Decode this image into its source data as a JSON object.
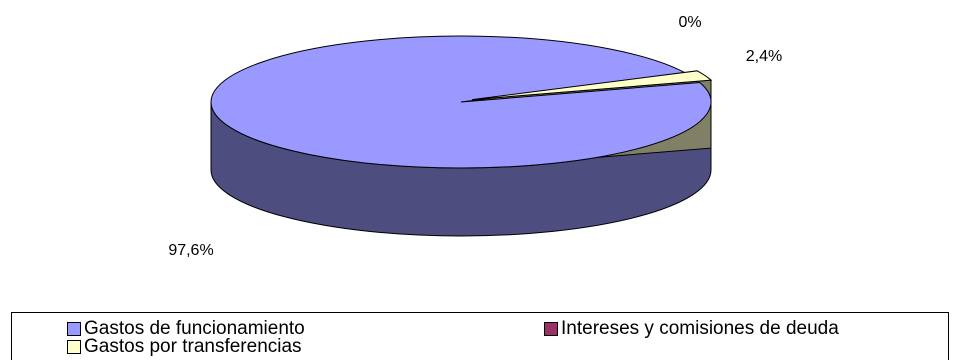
{
  "chart_data": {
    "type": "pie",
    "style": "3d",
    "slices": [
      {
        "label": "Gastos de funcionamiento",
        "value": 97.6,
        "display": "97,6%",
        "color": "#9999ff",
        "side_color": "#4d4d80"
      },
      {
        "label": "Intereses y comisiones de deuda",
        "value": 0,
        "display": "0%",
        "color": "#993366",
        "side_color": "#4d1a33"
      },
      {
        "label": "Gastos por transferencias",
        "value": 2.4,
        "display": "2,4%",
        "color": "#ffffcc",
        "side_color": "#808066"
      }
    ],
    "legend": {
      "placement": "bottom",
      "items": [
        {
          "label": "Gastos de funcionamiento",
          "color": "#9999ff"
        },
        {
          "label": "Intereses y comisiones de deuda",
          "color": "#993366"
        },
        {
          "label": "Gastos por transferencias",
          "color": "#ffffcc"
        }
      ]
    }
  }
}
